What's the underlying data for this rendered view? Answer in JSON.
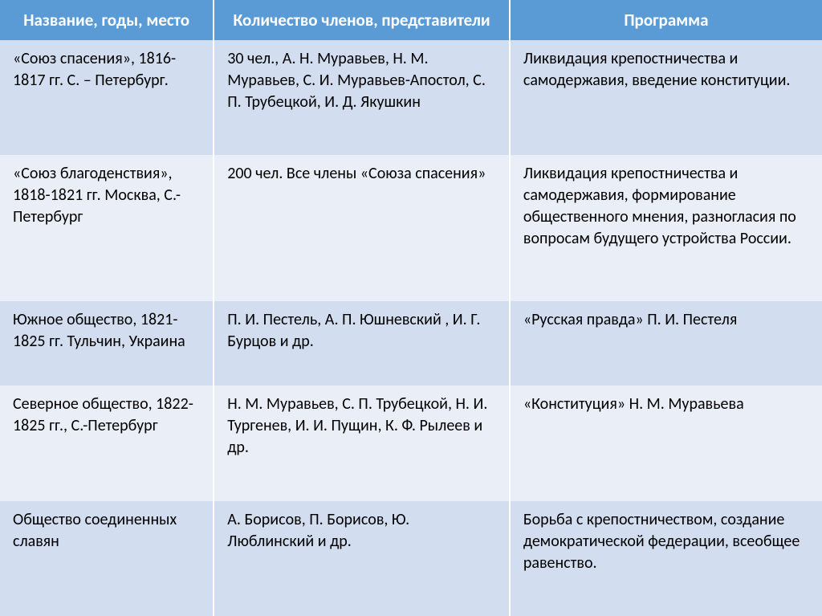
{
  "table": {
    "header_bg": "#5b9bd5",
    "header_fg": "#ffffff",
    "row_odd_bg": "#d2deef",
    "row_even_bg": "#eaeff7",
    "columns": [
      "Название, годы, место",
      "Количество членов, представители",
      "Программа"
    ],
    "rows": [
      {
        "c1": "«Союз спасения», 1816-1817 гг. С. – Петербург.",
        "c2": "30 чел., А. Н. Муравьев, Н. М. Муравьев, С. И. Муравьев-Апостол, С. П. Трубецкой, И. Д. Якушкин",
        "c3": "Ликвидация крепостничества и самодержавия, введение конституции."
      },
      {
        "c1": "«Союз благоденствия», 1818-1821 гг. Москва, С.- Петербург",
        "c2": "200 чел. Все члены «Союза спасения»",
        "c3": "Ликвидация крепостничества и самодержавия, формирование общественного мнения, разногласия по вопросам будущего устройства России."
      },
      {
        "c1": "Южное общество, 1821-1825 гг. Тульчин, Украина",
        "c2": "П. И. Пестель, А. П. Юшневский , И. Г. Бурцов и др.",
        "c3": "«Русская правда» П. И. Пестеля"
      },
      {
        "c1": "Северное общество, 1822-1825 гг., С.-Петербург",
        "c2": "Н. М. Муравьев, С. П. Трубецкой, Н. И. Тургенев, И. И. Пущин, К. Ф. Рылеев и др.",
        "c3": "«Конституция» Н. М. Муравьева"
      },
      {
        "c1": "Общество соединенных славян",
        "c2": "А. Борисов, П. Борисов, Ю. Люблинский и др.",
        "c3": "Борьба с крепостничеством, создание демократической федерации, всеобщее равенство."
      }
    ]
  }
}
